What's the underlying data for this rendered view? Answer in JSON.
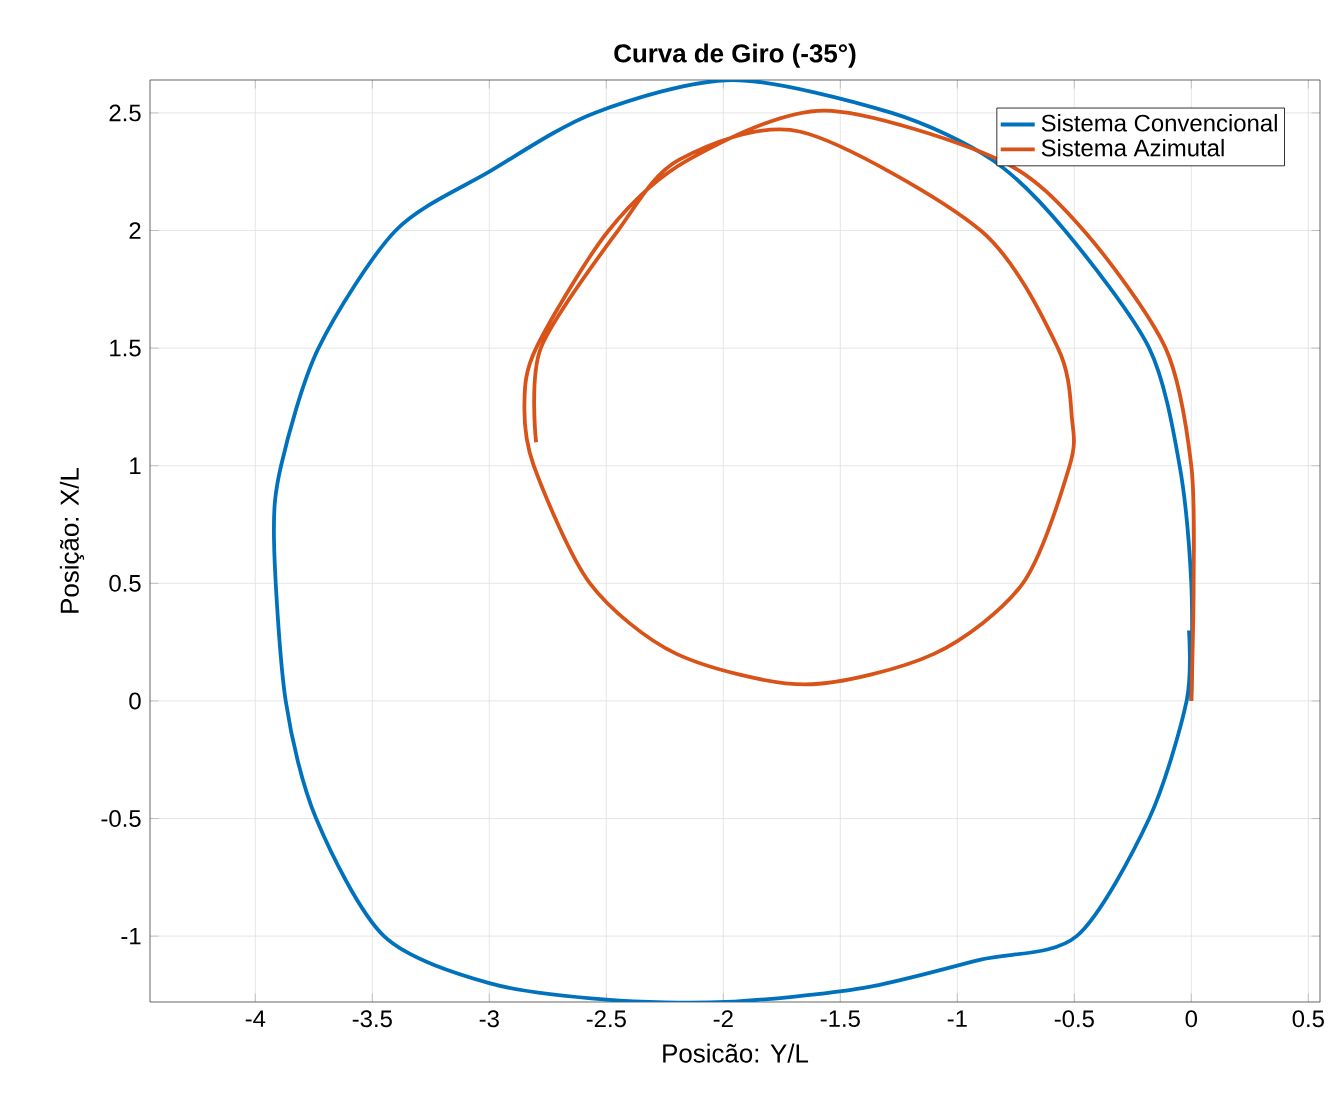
{
  "chart_data": {
    "type": "line",
    "title": "Curva de Giro (-35°)",
    "xlabel": "Posicão: Y/L",
    "ylabel": "Posição: X/L",
    "xlim": [
      -4.45,
      0.55
    ],
    "ylim": [
      -1.28,
      2.64
    ],
    "xticks": [
      -4,
      -3.5,
      -3,
      -2.5,
      -2,
      -1.5,
      -1,
      -0.5,
      0,
      0.5
    ],
    "yticks": [
      -1,
      -0.5,
      0,
      0.5,
      1,
      1.5,
      2,
      2.5
    ],
    "grid": true,
    "legend": "top right",
    "marker": "none",
    "line_style": "solid",
    "series": [
      {
        "name": "Sistema Convencional",
        "color": "#0072bd",
        "x": [
          0,
          0,
          -0.05,
          -0.18,
          -0.54,
          -0.85,
          -1.28,
          -1.96,
          -2.55,
          -3.0,
          -3.4,
          -3.73,
          -3.89,
          -3.92,
          -3.87,
          -3.74,
          -3.45,
          -3.0,
          -2.5,
          -1.99,
          -1.4,
          -0.9,
          -0.49,
          -0.18,
          -0.02,
          -0.01
        ],
        "values": [
          0,
          0.5,
          1,
          1.5,
          2,
          2.3,
          2.5,
          2.64,
          2.5,
          2.25,
          2,
          1.5,
          1,
          0.68,
          0,
          -0.5,
          -1,
          -1.2,
          -1.27,
          -1.28,
          -1.22,
          -1.1,
          -1,
          -0.5,
          0,
          0.3
        ]
      },
      {
        "name": "Sistema Azimutal",
        "color": "#d95319",
        "x": [
          0,
          0.01,
          0,
          -0.11,
          -0.46,
          -0.82,
          -1.57,
          -2.15,
          -2.49,
          -2.8,
          -2.85,
          -2.81,
          -2.57,
          -2.2,
          -1.65,
          -1.1,
          -0.72,
          -0.52,
          -0.51,
          -0.57,
          -0.9,
          -1.67,
          -2.19,
          -2.45,
          -2.78,
          -2.8
        ],
        "values": [
          0,
          0.5,
          1,
          1.5,
          2,
          2.3,
          2.51,
          2.3,
          2,
          1.5,
          1.26,
          1,
          0.5,
          0.2,
          0.07,
          0.2,
          0.5,
          1,
          1.2,
          1.5,
          2,
          2.42,
          2.3,
          2,
          1.5,
          1.1
        ]
      }
    ]
  }
}
